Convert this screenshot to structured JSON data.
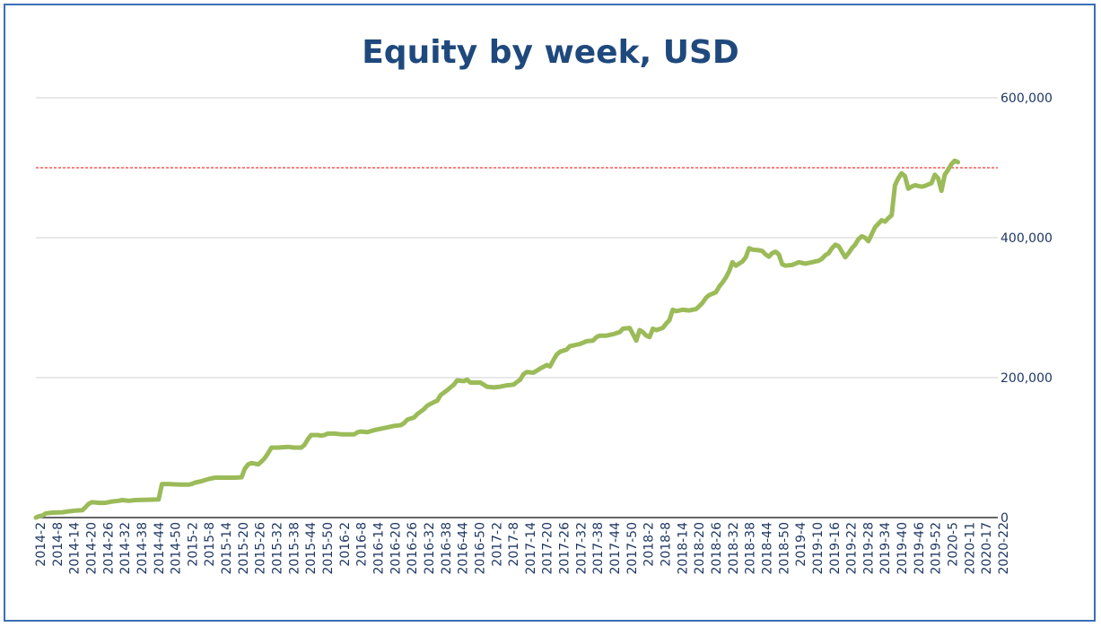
{
  "chart_data": {
    "type": "line",
    "title": "Equity by week, USD",
    "xlabel": "",
    "ylabel": "",
    "ylim": [
      0,
      600000
    ],
    "y_ticks": [
      0,
      200000,
      400000,
      600000
    ],
    "y_tick_labels": [
      "0",
      "200,000",
      "400,000",
      "600,000"
    ],
    "x_tick_labels": [
      "2014-2",
      "2014-8",
      "2014-14",
      "2014-20",
      "2014-26",
      "2014-32",
      "2014-38",
      "2014-44",
      "2014-50",
      "2015-2",
      "2015-8",
      "2015-14",
      "2015-20",
      "2015-26",
      "2015-32",
      "2015-38",
      "2015-44",
      "2015-50",
      "2016-2",
      "2016-8",
      "2016-14",
      "2016-20",
      "2016-26",
      "2016-32",
      "2016-38",
      "2016-44",
      "2016-50",
      "2017-2",
      "2017-8",
      "2017-14",
      "2017-20",
      "2017-26",
      "2017-32",
      "2017-38",
      "2017-44",
      "2017-50",
      "2018-2",
      "2018-8",
      "2018-14",
      "2018-20",
      "2018-26",
      "2018-32",
      "2018-38",
      "2018-44",
      "2018-50",
      "2019-4",
      "2019-10",
      "2019-16",
      "2019-22",
      "2019-28",
      "2019-34",
      "2019-40",
      "2019-46",
      "2019-52",
      "2020-5",
      "2020-11",
      "2020-17",
      "2020-22"
    ],
    "series": [
      {
        "color": "#9bbb59",
        "points": [
          [
            0,
            0
          ],
          [
            1,
            2000
          ],
          [
            2,
            3000
          ],
          [
            3,
            6000
          ],
          [
            5,
            7000
          ],
          [
            8,
            7500
          ],
          [
            10,
            9000
          ],
          [
            12,
            10000
          ],
          [
            14,
            10500
          ],
          [
            15,
            15000
          ],
          [
            16,
            20000
          ],
          [
            17,
            22000
          ],
          [
            19,
            21000
          ],
          [
            21,
            21000
          ],
          [
            22,
            22000
          ],
          [
            23,
            23000
          ],
          [
            25,
            24000
          ],
          [
            26,
            25000
          ],
          [
            28,
            24000
          ],
          [
            29,
            24500
          ],
          [
            30,
            25000
          ],
          [
            34,
            25500
          ],
          [
            37,
            26000
          ],
          [
            38,
            48000
          ],
          [
            40,
            48000
          ],
          [
            42,
            47500
          ],
          [
            44,
            47000
          ],
          [
            46,
            47000
          ],
          [
            47,
            48000
          ],
          [
            48,
            50000
          ],
          [
            50,
            52000
          ],
          [
            52,
            55000
          ],
          [
            54,
            57000
          ],
          [
            56,
            57000
          ],
          [
            60,
            57000
          ],
          [
            62,
            57500
          ],
          [
            63,
            70000
          ],
          [
            64,
            76000
          ],
          [
            65,
            78000
          ],
          [
            66,
            77000
          ],
          [
            67,
            76000
          ],
          [
            68,
            80000
          ],
          [
            69,
            85000
          ],
          [
            70,
            92000
          ],
          [
            71,
            100000
          ],
          [
            73,
            100000
          ],
          [
            76,
            101000
          ],
          [
            78,
            100000
          ],
          [
            80,
            100000
          ],
          [
            81,
            104000
          ],
          [
            82,
            112000
          ],
          [
            83,
            118000
          ],
          [
            85,
            118000
          ],
          [
            86,
            117000
          ],
          [
            87,
            118000
          ],
          [
            88,
            120000
          ],
          [
            90,
            120000
          ],
          [
            92,
            119000
          ],
          [
            94,
            119000
          ],
          [
            96,
            119000
          ],
          [
            97,
            122000
          ],
          [
            98,
            123000
          ],
          [
            100,
            122000
          ],
          [
            102,
            125000
          ],
          [
            104,
            127000
          ],
          [
            105,
            128000
          ],
          [
            106,
            129000
          ],
          [
            108,
            131000
          ],
          [
            110,
            132000
          ],
          [
            111,
            135000
          ],
          [
            112,
            140000
          ],
          [
            114,
            143000
          ],
          [
            115,
            148000
          ],
          [
            117,
            155000
          ],
          [
            118,
            160000
          ],
          [
            120,
            165000
          ],
          [
            121,
            167000
          ],
          [
            122,
            175000
          ],
          [
            124,
            182000
          ],
          [
            126,
            190000
          ],
          [
            127,
            196000
          ],
          [
            129,
            195000
          ],
          [
            130,
            197000
          ],
          [
            131,
            193000
          ],
          [
            134,
            193000
          ],
          [
            135,
            190000
          ],
          [
            136,
            187000
          ],
          [
            138,
            186000
          ],
          [
            140,
            187000
          ],
          [
            142,
            189000
          ],
          [
            144,
            190000
          ],
          [
            146,
            197000
          ],
          [
            147,
            205000
          ],
          [
            148,
            208000
          ],
          [
            150,
            207000
          ],
          [
            151,
            210000
          ],
          [
            152,
            213000
          ],
          [
            154,
            218000
          ],
          [
            155,
            216000
          ],
          [
            156,
            225000
          ],
          [
            157,
            233000
          ],
          [
            158,
            237000
          ],
          [
            160,
            240000
          ],
          [
            161,
            245000
          ],
          [
            163,
            247000
          ],
          [
            164,
            248000
          ],
          [
            166,
            252000
          ],
          [
            168,
            253000
          ],
          [
            169,
            258000
          ],
          [
            170,
            260000
          ],
          [
            172,
            260000
          ],
          [
            174,
            262000
          ],
          [
            176,
            265000
          ],
          [
            177,
            270000
          ],
          [
            179,
            271000
          ],
          [
            180,
            262000
          ],
          [
            181,
            253000
          ],
          [
            182,
            268000
          ],
          [
            183,
            265000
          ],
          [
            184,
            260000
          ],
          [
            185,
            258000
          ],
          [
            186,
            270000
          ],
          [
            187,
            268000
          ],
          [
            189,
            271000
          ],
          [
            190,
            277000
          ],
          [
            191,
            282000
          ],
          [
            192,
            297000
          ],
          [
            193,
            295000
          ],
          [
            195,
            297000
          ],
          [
            197,
            296000
          ],
          [
            199,
            298000
          ],
          [
            200,
            302000
          ],
          [
            201,
            307000
          ],
          [
            202,
            314000
          ],
          [
            203,
            318000
          ],
          [
            205,
            322000
          ],
          [
            206,
            330000
          ],
          [
            207,
            336000
          ],
          [
            208,
            343000
          ],
          [
            209,
            352000
          ],
          [
            210,
            365000
          ],
          [
            211,
            360000
          ],
          [
            212,
            363000
          ],
          [
            213,
            366000
          ],
          [
            214,
            372000
          ],
          [
            215,
            385000
          ],
          [
            216,
            383000
          ],
          [
            218,
            382000
          ],
          [
            219,
            381000
          ],
          [
            220,
            376000
          ],
          [
            221,
            373000
          ],
          [
            222,
            378000
          ],
          [
            223,
            380000
          ],
          [
            224,
            376000
          ],
          [
            225,
            362000
          ],
          [
            226,
            360000
          ],
          [
            228,
            361000
          ],
          [
            229,
            363000
          ],
          [
            230,
            365000
          ],
          [
            232,
            363000
          ],
          [
            234,
            365000
          ],
          [
            236,
            367000
          ],
          [
            237,
            370000
          ],
          [
            238,
            375000
          ],
          [
            239,
            378000
          ],
          [
            240,
            385000
          ],
          [
            241,
            390000
          ],
          [
            242,
            388000
          ],
          [
            243,
            380000
          ],
          [
            244,
            372000
          ],
          [
            245,
            378000
          ],
          [
            246,
            385000
          ],
          [
            247,
            390000
          ],
          [
            248,
            398000
          ],
          [
            249,
            402000
          ],
          [
            250,
            400000
          ],
          [
            251,
            395000
          ],
          [
            252,
            405000
          ],
          [
            253,
            415000
          ],
          [
            254,
            420000
          ],
          [
            255,
            425000
          ],
          [
            256,
            423000
          ],
          [
            257,
            428000
          ],
          [
            258,
            432000
          ],
          [
            259,
            475000
          ],
          [
            260,
            485000
          ],
          [
            261,
            492000
          ],
          [
            262,
            488000
          ],
          [
            263,
            470000
          ],
          [
            264,
            473000
          ],
          [
            265,
            475000
          ],
          [
            266,
            474000
          ],
          [
            267,
            473000
          ],
          [
            268,
            474000
          ],
          [
            269,
            476000
          ],
          [
            270,
            478000
          ],
          [
            271,
            490000
          ],
          [
            272,
            485000
          ],
          [
            273,
            467000
          ],
          [
            274,
            490000
          ],
          [
            275,
            497000
          ],
          [
            276,
            505000
          ],
          [
            277,
            510000
          ],
          [
            278,
            508000
          ]
        ]
      }
    ],
    "x_max": 290,
    "reference_line": {
      "y": 500000,
      "color": "#ff0000",
      "style": "dashed"
    },
    "grid": true
  }
}
